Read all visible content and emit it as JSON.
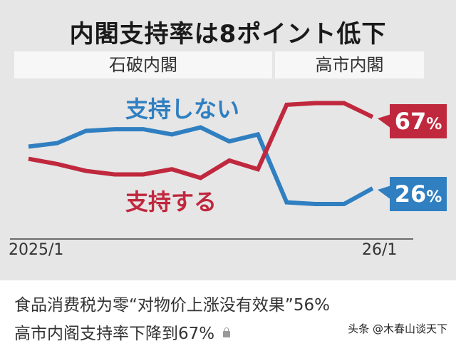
{
  "chart_data": {
    "type": "line",
    "title": "内閣支持率は8ポイント低下",
    "periods": [
      {
        "label": "石破内閣",
        "x_range": [
          0,
          8
        ]
      },
      {
        "label": "高市内閣",
        "x_range": [
          9,
          12
        ]
      }
    ],
    "x": [
      "2025/1",
      "",
      "",
      "",
      "",
      "",
      "",
      "",
      "",
      "",
      "",
      "",
      "26/1"
    ],
    "x_tick_labels": [
      "2025/1",
      "26/1"
    ],
    "series": [
      {
        "name": "支持しない",
        "color": "#2f7fc1",
        "values": [
          50,
          52,
          59,
          60,
          60,
          57,
          61,
          53,
          57,
          18,
          17,
          17,
          26
        ],
        "end_label": "26%"
      },
      {
        "name": "支持する",
        "color": "#c0283e",
        "values": [
          43,
          40,
          36,
          34,
          34,
          37,
          32,
          42,
          37,
          74,
          75,
          75,
          67
        ],
        "end_label": "67%"
      }
    ],
    "xlabel": "",
    "ylabel": "",
    "ylim": [
      0,
      90
    ],
    "grid": false,
    "legend_position": "inline"
  },
  "header": {
    "title": "内閣支持率は8ポイント低下",
    "era_left": "石破内閣",
    "era_right": "高市内閣"
  },
  "labels": {
    "not_support": "支持しない",
    "support": "支持する",
    "support_badge": "67",
    "not_support_badge": "26",
    "percent": "%"
  },
  "axis": {
    "start": "2025/1",
    "end": "26/1"
  },
  "caption": {
    "line1": "食品消费税为零“对物价上涨没有效果”56%",
    "line2": "高市内阁支持率下降到67%",
    "watermark": "头条 @木春山谈天下"
  },
  "colors": {
    "red": "#c0283e",
    "blue": "#2f7fc1",
    "panel": "#e6e6e6"
  }
}
